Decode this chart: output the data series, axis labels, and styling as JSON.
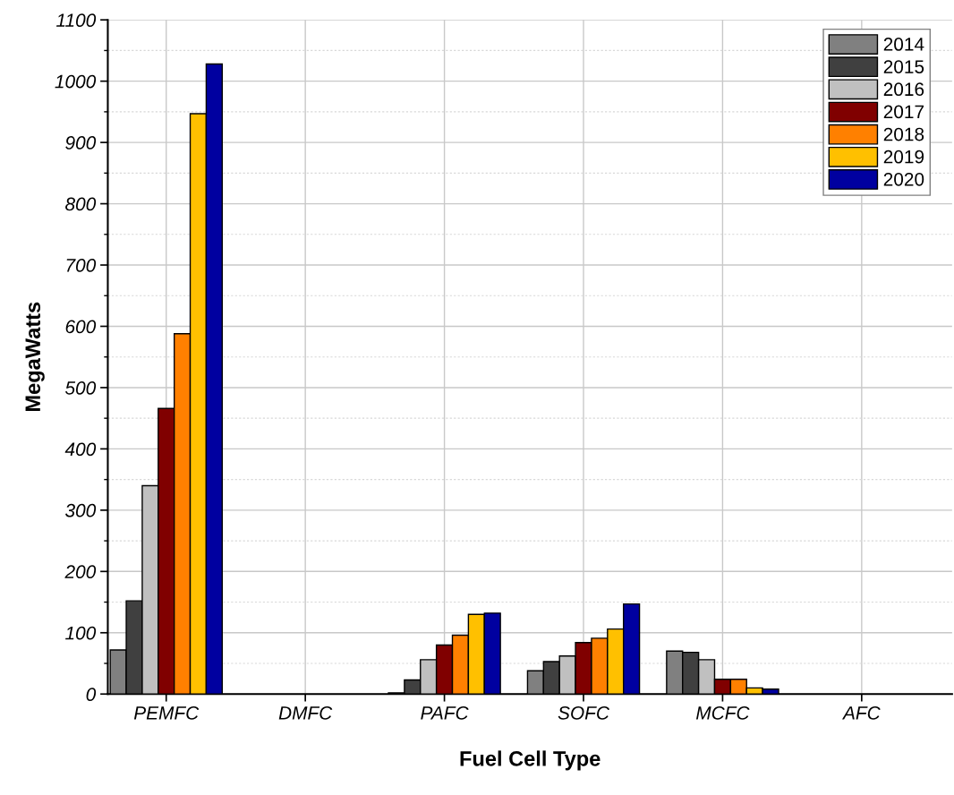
{
  "chart_data": {
    "type": "bar",
    "xlabel": "Fuel Cell Type",
    "ylabel": "MegaWatts",
    "categories": [
      "PEMFC",
      "DMFC",
      "PAFC",
      "SOFC",
      "MCFC",
      "AFC"
    ],
    "series": [
      {
        "name": "2014",
        "color": "#808080",
        "values": [
          72,
          null,
          2,
          38,
          70,
          null
        ]
      },
      {
        "name": "2015",
        "color": "#404040",
        "values": [
          152,
          null,
          23,
          53,
          68,
          null
        ]
      },
      {
        "name": "2016",
        "color": "#c0c0c0",
        "values": [
          340,
          null,
          56,
          62,
          56,
          null
        ]
      },
      {
        "name": "2017",
        "color": "#800000",
        "values": [
          466,
          null,
          80,
          84,
          24,
          null
        ]
      },
      {
        "name": "2018",
        "color": "#ff8000",
        "values": [
          588,
          null,
          96,
          91,
          24,
          null
        ]
      },
      {
        "name": "2019",
        "color": "#ffc000",
        "values": [
          947,
          null,
          130,
          106,
          10,
          null
        ]
      },
      {
        "name": "2020",
        "color": "#0000a0",
        "values": [
          1028,
          null,
          132,
          147,
          8,
          null
        ]
      }
    ],
    "ylim": [
      0,
      1100
    ],
    "yticks": [
      0,
      100,
      200,
      300,
      400,
      500,
      600,
      700,
      800,
      900,
      1000,
      1100
    ],
    "grid": true,
    "legend": "top right"
  }
}
